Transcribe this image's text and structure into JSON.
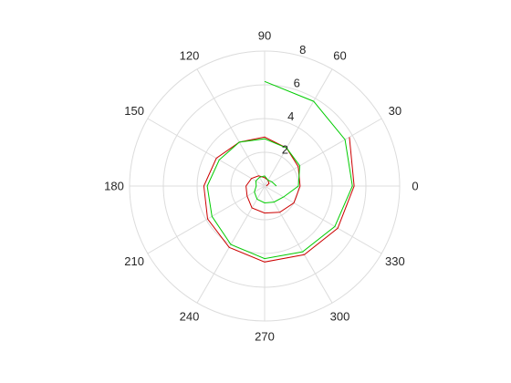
{
  "chart_data": {
    "type": "line",
    "polar": true,
    "theta_unit": "degrees",
    "theta_ticks": [
      0,
      30,
      60,
      90,
      120,
      150,
      180,
      210,
      240,
      270,
      300,
      330
    ],
    "theta_tick_labels": [
      "0",
      "30",
      "60",
      "90",
      "120",
      "150",
      "180",
      "210",
      "240",
      "270",
      "300",
      "330"
    ],
    "r_ticks": [
      2,
      4,
      6,
      8
    ],
    "r_tick_labels": [
      "2",
      "4",
      "6",
      "8"
    ],
    "rlim": [
      0,
      8
    ],
    "grid": true,
    "legend": null,
    "series": [
      {
        "color": "#cc0000",
        "theta": [
          0,
          30,
          60,
          90,
          120,
          150,
          180,
          210,
          240,
          270,
          300,
          330,
          360,
          390,
          420,
          450,
          480,
          510,
          540,
          570,
          600,
          630,
          660,
          690,
          720,
          750
        ],
        "r": [
          0.1,
          0.3,
          0.4,
          0.5,
          0.7,
          0.9,
          1.1,
          1.2,
          1.5,
          1.6,
          1.8,
          2.0,
          2.1,
          2.3,
          2.6,
          2.9,
          3.0,
          3.3,
          3.6,
          3.9,
          4.2,
          4.5,
          4.7,
          5.0,
          5.3,
          5.8
        ]
      },
      {
        "color": "#00cc00",
        "theta": [
          0,
          30,
          60,
          90,
          120,
          150,
          180,
          210,
          240,
          270,
          300,
          330,
          360,
          390,
          420,
          450,
          480,
          510,
          540,
          570,
          600,
          630,
          660,
          690,
          720,
          750,
          780,
          810
        ],
        "r": [
          0.7,
          0.5,
          0.4,
          0.6,
          0.6,
          0.6,
          0.5,
          0.7,
          0.9,
          1.0,
          1.1,
          1.3,
          2.0,
          2.4,
          2.6,
          2.8,
          3.0,
          3.1,
          3.4,
          3.6,
          4.0,
          4.3,
          4.5,
          4.8,
          5.2,
          5.5,
          5.8,
          6.2
        ]
      }
    ]
  }
}
